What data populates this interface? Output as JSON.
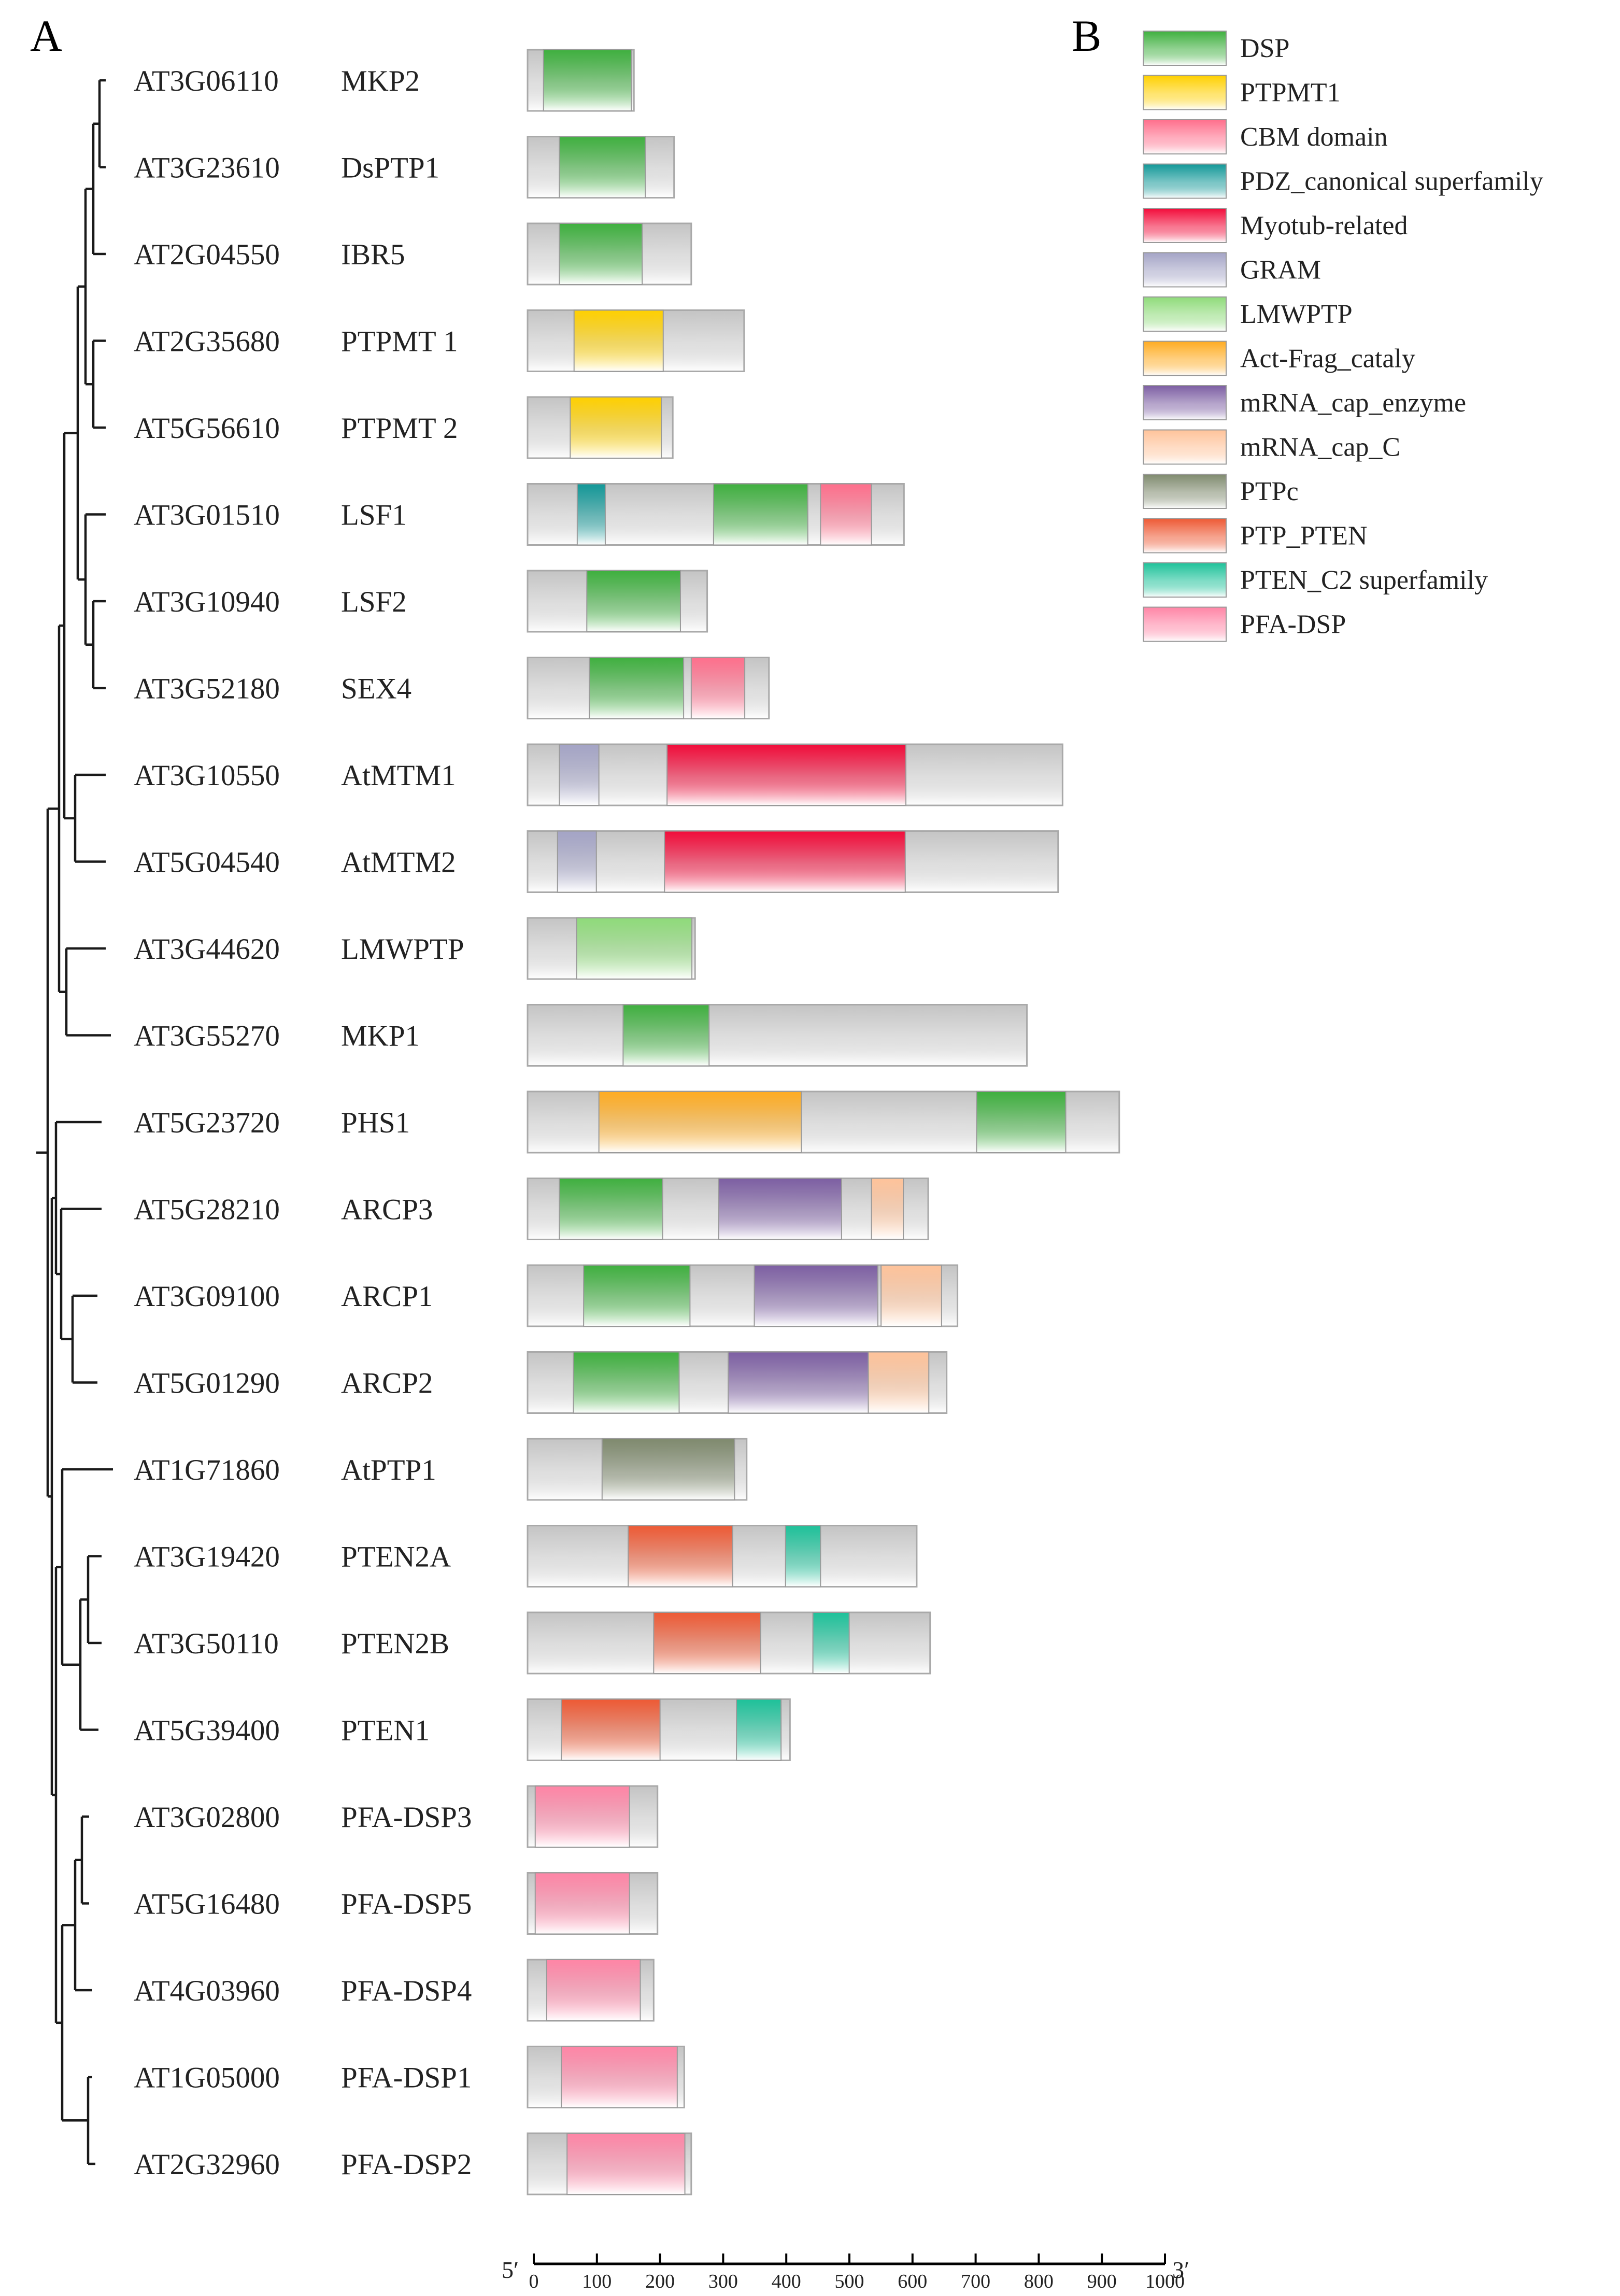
{
  "panel_labels": {
    "a": "A",
    "b": "B"
  },
  "domain_types": {
    "DSP": {
      "label": "DSP",
      "color": "#3fb03f"
    },
    "PTPMT1": {
      "label": "PTPMT1",
      "color": "#ffd000"
    },
    "CBM": {
      "label": "CBM domain",
      "color": "#ff6f8c"
    },
    "PDZ": {
      "label": "PDZ_canonical superfamily",
      "color": "#139898"
    },
    "Myotub": {
      "label": "Myotub-related",
      "color": "#f20c3a"
    },
    "GRAM": {
      "label": "GRAM",
      "color": "#a4a4c6"
    },
    "LMWPTP": {
      "label": "LMWPTP",
      "color": "#8fdb7a"
    },
    "ActFrag": {
      "label": "Act-Frag_cataly",
      "color": "#ffac22"
    },
    "mRNAcap": {
      "label": "mRNA_cap_enzyme",
      "color": "#7d5fa3"
    },
    "mRNAcapC": {
      "label": "mRNA_cap_C",
      "color": "#ffc39a"
    },
    "PTPc": {
      "label": "PTPc",
      "color": "#7f8a6e"
    },
    "PTPPTEN": {
      "label": "PTP_PTEN",
      "color": "#ee5a35"
    },
    "PTENC2": {
      "label": "PTEN_C2 superfamily",
      "color": "#1ec29a"
    },
    "PFADSP": {
      "label": "PFA-DSP",
      "color": "#ff85a6"
    }
  },
  "legend_order": [
    "DSP",
    "PTPMT1",
    "CBM",
    "PDZ",
    "Myotub",
    "GRAM",
    "LMWPTP",
    "ActFrag",
    "mRNAcap",
    "mRNAcapC",
    "PTPc",
    "PTPPTEN",
    "PTENC2",
    "PFADSP"
  ],
  "axis": {
    "five_prime": "5′",
    "three_prime": "3′",
    "min": 0,
    "max": 1000,
    "ticks": [
      "0",
      "100",
      "200",
      "300",
      "400",
      "500",
      "600",
      "700",
      "800",
      "900",
      "1000"
    ]
  },
  "proteins": [
    {
      "id": "AT3G06110",
      "name": "MKP2",
      "length": 167,
      "domains": [
        {
          "type": "DSP",
          "start": 25,
          "end": 163
        }
      ]
    },
    {
      "id": "AT3G23610",
      "name": "DsPTP1",
      "length": 230,
      "domains": [
        {
          "type": "DSP",
          "start": 50,
          "end": 185
        }
      ]
    },
    {
      "id": "AT2G04550",
      "name": "IBR5",
      "length": 257,
      "domains": [
        {
          "type": "DSP",
          "start": 50,
          "end": 180
        }
      ]
    },
    {
      "id": "AT2G35680",
      "name": "PTPMT 1",
      "length": 340,
      "domains": [
        {
          "type": "PTPMT1",
          "start": 73,
          "end": 213
        }
      ]
    },
    {
      "id": "AT5G56610",
      "name": "PTPMT 2",
      "length": 228,
      "domains": [
        {
          "type": "PTPMT1",
          "start": 67,
          "end": 210
        }
      ]
    },
    {
      "id": "AT3G01510",
      "name": "LSF1",
      "length": 591,
      "domains": [
        {
          "type": "PDZ",
          "start": 78,
          "end": 122
        },
        {
          "type": "DSP",
          "start": 292,
          "end": 440
        },
        {
          "type": "CBM",
          "start": 460,
          "end": 540
        }
      ]
    },
    {
      "id": "AT3G10940",
      "name": "LSF2",
      "length": 282,
      "domains": [
        {
          "type": "DSP",
          "start": 93,
          "end": 240
        }
      ]
    },
    {
      "id": "AT3G52180",
      "name": "SEX4",
      "length": 379,
      "domains": [
        {
          "type": "DSP",
          "start": 97,
          "end": 245
        },
        {
          "type": "CBM",
          "start": 257,
          "end": 341
        }
      ]
    },
    {
      "id": "AT3G10550",
      "name": "AtMTM1",
      "length": 840,
      "domains": [
        {
          "type": "GRAM",
          "start": 50,
          "end": 112
        },
        {
          "type": "Myotub",
          "start": 219,
          "end": 594
        }
      ]
    },
    {
      "id": "AT5G04540",
      "name": "AtMTM2",
      "length": 833,
      "domains": [
        {
          "type": "GRAM",
          "start": 47,
          "end": 108
        },
        {
          "type": "Myotub",
          "start": 215,
          "end": 593
        }
      ]
    },
    {
      "id": "AT3G44620",
      "name": "LMWPTP",
      "length": 263,
      "domains": [
        {
          "type": "LMWPTP",
          "start": 77,
          "end": 258
        }
      ]
    },
    {
      "id": "AT3G55270",
      "name": "MKP1",
      "length": 784,
      "domains": [
        {
          "type": "DSP",
          "start": 150,
          "end": 285
        }
      ]
    },
    {
      "id": "AT5G23720",
      "name": "PHS1",
      "length": 929,
      "domains": [
        {
          "type": "ActFrag",
          "start": 112,
          "end": 430
        },
        {
          "type": "DSP",
          "start": 705,
          "end": 845
        }
      ]
    },
    {
      "id": "AT5G28210",
      "name": "ARCP3",
      "length": 629,
      "domains": [
        {
          "type": "DSP",
          "start": 50,
          "end": 212
        },
        {
          "type": "mRNAcap",
          "start": 300,
          "end": 493
        },
        {
          "type": "mRNAcapC",
          "start": 540,
          "end": 590
        }
      ]
    },
    {
      "id": "AT3G09100",
      "name": "ARCP1",
      "length": 675,
      "domains": [
        {
          "type": "DSP",
          "start": 88,
          "end": 255
        },
        {
          "type": "mRNAcap",
          "start": 356,
          "end": 550
        },
        {
          "type": "mRNAcapC",
          "start": 555,
          "end": 650
        }
      ]
    },
    {
      "id": "AT5G01290",
      "name": "ARCP2",
      "length": 658,
      "domains": [
        {
          "type": "DSP",
          "start": 72,
          "end": 238
        },
        {
          "type": "mRNAcap",
          "start": 315,
          "end": 535
        },
        {
          "type": "mRNAcapC",
          "start": 535,
          "end": 630
        }
      ]
    },
    {
      "id": "AT1G71860",
      "name": "AtPTP1",
      "length": 344,
      "domains": [
        {
          "type": "PTPc",
          "start": 117,
          "end": 325
        }
      ]
    },
    {
      "id": "AT3G19420",
      "name": "PTEN2A",
      "length": 611,
      "domains": [
        {
          "type": "PTPPTEN",
          "start": 158,
          "end": 322
        },
        {
          "type": "PTENC2",
          "start": 405,
          "end": 460
        }
      ]
    },
    {
      "id": "AT3G50110",
      "name": "PTEN2B",
      "length": 632,
      "domains": [
        {
          "type": "PTPPTEN",
          "start": 198,
          "end": 366
        },
        {
          "type": "PTENC2",
          "start": 448,
          "end": 505
        }
      ]
    },
    {
      "id": "AT5G39400",
      "name": "PTEN1",
      "length": 412,
      "domains": [
        {
          "type": "PTPPTEN",
          "start": 53,
          "end": 208
        },
        {
          "type": "PTENC2",
          "start": 328,
          "end": 398
        }
      ]
    },
    {
      "id": "AT3G02800",
      "name": "PFA-DSP3",
      "length": 204,
      "domains": [
        {
          "type": "PFADSP",
          "start": 12,
          "end": 160
        }
      ]
    },
    {
      "id": "AT5G16480",
      "name": "PFA-DSP5",
      "length": 204,
      "domains": [
        {
          "type": "PFADSP",
          "start": 12,
          "end": 160
        }
      ]
    },
    {
      "id": "AT4G03960",
      "name": "PFA-DSP4",
      "length": 198,
      "domains": [
        {
          "type": "PFADSP",
          "start": 30,
          "end": 177
        }
      ]
    },
    {
      "id": "AT1G05000",
      "name": "PFA-DSP1",
      "length": 246,
      "domains": [
        {
          "type": "PFADSP",
          "start": 53,
          "end": 235
        }
      ]
    },
    {
      "id": "AT2G32960",
      "name": "PFA-DSP2",
      "length": 257,
      "domains": [
        {
          "type": "PFADSP",
          "start": 62,
          "end": 247
        }
      ]
    }
  ]
}
